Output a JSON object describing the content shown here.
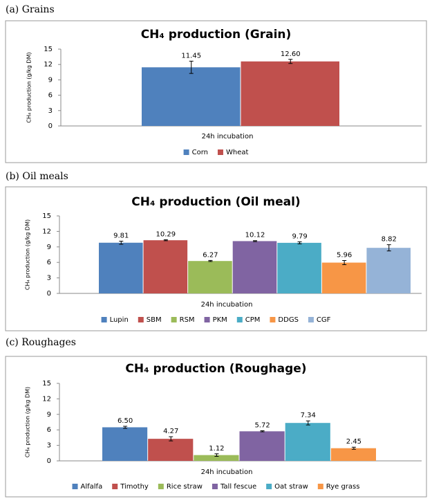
{
  "chart_data": [
    {
      "type": "bar",
      "caption": "(a) Grains",
      "title": "CH₄ production (Grain)",
      "y_label": "CH₄ production (g/kg DM)",
      "categories": [
        "24h incubation"
      ],
      "ylim": [
        0,
        15
      ],
      "yticks": [
        0,
        3,
        6,
        9,
        12,
        15
      ],
      "series": [
        {
          "name": "Corn",
          "color": "#4f81bd",
          "values": [
            11.45
          ],
          "errors": [
            1.2
          ],
          "value_labels": [
            "11.45"
          ]
        },
        {
          "name": "Wheat",
          "color": "#c0504d",
          "values": [
            12.6
          ],
          "errors": [
            0.4
          ],
          "value_labels": [
            "12.60"
          ]
        }
      ]
    },
    {
      "type": "bar",
      "caption": "(b) Oil meals",
      "title": "CH₄ production (Oil meal)",
      "y_label": "CH₄ production (g/kg DM)",
      "categories": [
        "24h incubation"
      ],
      "ylim": [
        0,
        15
      ],
      "yticks": [
        0,
        3,
        6,
        9,
        12,
        15
      ],
      "series": [
        {
          "name": "Lupin",
          "color": "#4f81bd",
          "values": [
            9.81
          ],
          "errors": [
            0.3
          ],
          "value_labels": [
            "9.81"
          ]
        },
        {
          "name": "SBM",
          "color": "#c0504d",
          "values": [
            10.29
          ],
          "errors": [
            0.1
          ],
          "value_labels": [
            "10.29"
          ]
        },
        {
          "name": "RSM",
          "color": "#9bbb59",
          "values": [
            6.27
          ],
          "errors": [
            0.1
          ],
          "value_labels": [
            "6.27"
          ]
        },
        {
          "name": "PKM",
          "color": "#8064a2",
          "values": [
            10.12
          ],
          "errors": [
            0.1
          ],
          "value_labels": [
            "10.12"
          ]
        },
        {
          "name": "CPM",
          "color": "#4bacc6",
          "values": [
            9.79
          ],
          "errors": [
            0.2
          ],
          "value_labels": [
            "9.79"
          ]
        },
        {
          "name": "DDGS",
          "color": "#f79646",
          "values": [
            5.96
          ],
          "errors": [
            0.4
          ],
          "value_labels": [
            "5.96"
          ]
        },
        {
          "name": "CGF",
          "color": "#95b3d7",
          "values": [
            8.82
          ],
          "errors": [
            0.6
          ],
          "value_labels": [
            "8.82"
          ]
        }
      ]
    },
    {
      "type": "bar",
      "caption": "(c) Roughages",
      "title": "CH₄ production (Roughage)",
      "y_label": "CH₄ production (g/kg DM)",
      "categories": [
        "24h incubation"
      ],
      "ylim": [
        0,
        15
      ],
      "yticks": [
        0,
        3,
        6,
        9,
        12,
        15
      ],
      "series": [
        {
          "name": "Alfalfa",
          "color": "#4f81bd",
          "values": [
            6.5
          ],
          "errors": [
            0.2
          ],
          "value_labels": [
            "6.50"
          ]
        },
        {
          "name": "Timothy",
          "color": "#c0504d",
          "values": [
            4.27
          ],
          "errors": [
            0.4
          ],
          "value_labels": [
            "4.27"
          ]
        },
        {
          "name": "Rice straw",
          "color": "#9bbb59",
          "values": [
            1.12
          ],
          "errors": [
            0.25
          ],
          "value_labels": [
            "1.12"
          ]
        },
        {
          "name": "Tall fescue",
          "color": "#8064a2",
          "values": [
            5.72
          ],
          "errors": [
            0.1
          ],
          "value_labels": [
            "5.72"
          ]
        },
        {
          "name": "Oat straw",
          "color": "#4bacc6",
          "values": [
            7.34
          ],
          "errors": [
            0.4
          ],
          "value_labels": [
            "7.34"
          ]
        },
        {
          "name": "Rye grass",
          "color": "#f79646",
          "values": [
            2.45
          ],
          "errors": [
            0.2
          ],
          "value_labels": [
            "2.45"
          ]
        }
      ]
    }
  ]
}
